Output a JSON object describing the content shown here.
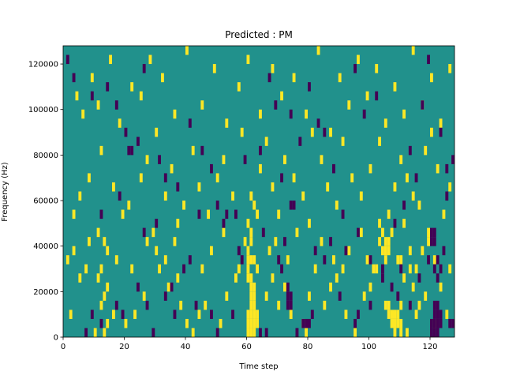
{
  "chart_data": {
    "type": "heatmap",
    "title": "Predicted : PM",
    "xlabel": "Time step",
    "ylabel": "Frequency (Hz)",
    "xlim": [
      0,
      128
    ],
    "ylim": [
      0,
      128000
    ],
    "x_ticks": [
      0,
      20,
      40,
      60,
      80,
      100,
      120
    ],
    "y_ticks": [
      0,
      20000,
      40000,
      60000,
      80000,
      100000,
      120000
    ],
    "x_tick_labels": [
      "0",
      "20",
      "40",
      "60",
      "80",
      "100",
      "120"
    ],
    "y_tick_labels": [
      "0",
      "20000",
      "40000",
      "60000",
      "80000",
      "100000",
      "120000"
    ],
    "grid": false,
    "legend": "none",
    "colors": {
      "background_value": "#21918c",
      "high_value": "#fde725",
      "low_value": "#440154"
    },
    "cell_height_hz": 4000,
    "high_cells": [
      [
        60,
        2000
      ],
      [
        61,
        2000
      ],
      [
        62,
        2000
      ],
      [
        60,
        6000
      ],
      [
        61,
        6000
      ],
      [
        62,
        6000
      ],
      [
        63,
        6000
      ],
      [
        60,
        10000
      ],
      [
        61,
        10000
      ],
      [
        62,
        10000
      ],
      [
        63,
        10000
      ],
      [
        61,
        14000
      ],
      [
        62,
        14000
      ],
      [
        61,
        18000
      ],
      [
        62,
        18000
      ],
      [
        61,
        22000
      ],
      [
        62,
        22000
      ],
      [
        60,
        26000
      ],
      [
        61,
        26000
      ],
      [
        60,
        30000
      ],
      [
        63,
        30000
      ],
      [
        60,
        34000
      ],
      [
        61,
        34000
      ],
      [
        62,
        34000
      ],
      [
        60,
        38000
      ],
      [
        61,
        42000
      ],
      [
        61,
        46000
      ],
      [
        60,
        50000
      ],
      [
        105,
        14000
      ],
      [
        106,
        14000
      ],
      [
        110,
        14000
      ],
      [
        106,
        10000
      ],
      [
        107,
        10000
      ],
      [
        108,
        10000
      ],
      [
        109,
        10000
      ],
      [
        107,
        6000
      ],
      [
        108,
        6000
      ],
      [
        109,
        6000
      ],
      [
        110,
        6000
      ],
      [
        108,
        2000
      ],
      [
        110,
        2000
      ],
      [
        104,
        38000
      ],
      [
        105,
        38000
      ],
      [
        106,
        38000
      ],
      [
        105,
        42000
      ],
      [
        106,
        42000
      ],
      [
        104,
        46000
      ],
      [
        103,
        50000
      ],
      [
        105,
        34000
      ],
      [
        110,
        34000
      ],
      [
        2,
        10000
      ],
      [
        10,
        2000
      ],
      [
        13,
        2000
      ],
      [
        14,
        6000
      ],
      [
        16,
        10000
      ],
      [
        12,
        14000
      ],
      [
        13,
        18000
      ],
      [
        14,
        22000
      ],
      [
        11,
        26000
      ],
      [
        12,
        30000
      ],
      [
        14,
        38000
      ],
      [
        13,
        42000
      ],
      [
        11,
        46000
      ],
      [
        20,
        6000
      ],
      [
        23,
        10000
      ],
      [
        26,
        18000
      ],
      [
        22,
        30000
      ],
      [
        31,
        30000
      ],
      [
        30,
        38000
      ],
      [
        34,
        22000
      ],
      [
        37,
        26000
      ],
      [
        38,
        14000
      ],
      [
        40,
        6000
      ],
      [
        42,
        2000
      ],
      [
        44,
        10000
      ],
      [
        46,
        14000
      ],
      [
        51,
        6000
      ],
      [
        53,
        18000
      ],
      [
        56,
        26000
      ],
      [
        57,
        30000
      ],
      [
        66,
        18000
      ],
      [
        68,
        26000
      ],
      [
        70,
        14000
      ],
      [
        72,
        22000
      ],
      [
        74,
        10000
      ],
      [
        78,
        6000
      ],
      [
        79,
        2000
      ],
      [
        80,
        18000
      ],
      [
        82,
        30000
      ],
      [
        85,
        14000
      ],
      [
        87,
        22000
      ],
      [
        89,
        26000
      ],
      [
        92,
        10000
      ],
      [
        95,
        2000
      ],
      [
        98,
        18000
      ],
      [
        100,
        22000
      ],
      [
        102,
        30000
      ],
      [
        111,
        26000
      ],
      [
        113,
        30000
      ],
      [
        116,
        14000
      ],
      [
        118,
        18000
      ],
      [
        112,
        2000
      ],
      [
        114,
        22000
      ],
      [
        115,
        10000
      ],
      [
        117,
        38000
      ],
      [
        119,
        42000
      ],
      [
        121,
        6000
      ],
      [
        123,
        22000
      ],
      [
        125,
        10000
      ],
      [
        126,
        30000
      ],
      [
        3,
        54000
      ],
      [
        5,
        62000
      ],
      [
        8,
        70000
      ],
      [
        12,
        82000
      ],
      [
        16,
        66000
      ],
      [
        19,
        54000
      ],
      [
        21,
        58000
      ],
      [
        25,
        70000
      ],
      [
        27,
        78000
      ],
      [
        30,
        90000
      ],
      [
        33,
        62000
      ],
      [
        35,
        74000
      ],
      [
        37,
        50000
      ],
      [
        39,
        58000
      ],
      [
        42,
        82000
      ],
      [
        44,
        66000
      ],
      [
        47,
        54000
      ],
      [
        50,
        70000
      ],
      [
        52,
        78000
      ],
      [
        55,
        62000
      ],
      [
        58,
        90000
      ],
      [
        62,
        58000
      ],
      [
        64,
        74000
      ],
      [
        66,
        86000
      ],
      [
        68,
        66000
      ],
      [
        70,
        54000
      ],
      [
        72,
        78000
      ],
      [
        75,
        70000
      ],
      [
        78,
        62000
      ],
      [
        81,
        90000
      ],
      [
        84,
        78000
      ],
      [
        86,
        66000
      ],
      [
        89,
        58000
      ],
      [
        91,
        86000
      ],
      [
        94,
        70000
      ],
      [
        97,
        62000
      ],
      [
        100,
        74000
      ],
      [
        103,
        86000
      ],
      [
        106,
        54000
      ],
      [
        108,
        66000
      ],
      [
        110,
        78000
      ],
      [
        112,
        70000
      ],
      [
        114,
        62000
      ],
      [
        116,
        58000
      ],
      [
        118,
        82000
      ],
      [
        120,
        90000
      ],
      [
        122,
        74000
      ],
      [
        124,
        54000
      ],
      [
        126,
        66000
      ],
      [
        4,
        106000
      ],
      [
        6,
        98000
      ],
      [
        9,
        114000
      ],
      [
        11,
        102000
      ],
      [
        15,
        122000
      ],
      [
        18,
        94000
      ],
      [
        22,
        110000
      ],
      [
        25,
        106000
      ],
      [
        28,
        122000
      ],
      [
        32,
        114000
      ],
      [
        36,
        98000
      ],
      [
        40,
        126000
      ],
      [
        45,
        102000
      ],
      [
        49,
        118000
      ],
      [
        53,
        94000
      ],
      [
        57,
        110000
      ],
      [
        60,
        122000
      ],
      [
        64,
        98000
      ],
      [
        68,
        118000
      ],
      [
        71,
        106000
      ],
      [
        75,
        114000
      ],
      [
        79,
        98000
      ],
      [
        83,
        126000
      ],
      [
        87,
        90000
      ],
      [
        90,
        114000
      ],
      [
        93,
        102000
      ],
      [
        96,
        122000
      ],
      [
        99,
        106000
      ],
      [
        102,
        118000
      ],
      [
        105,
        94000
      ],
      [
        108,
        110000
      ],
      [
        111,
        98000
      ],
      [
        114,
        126000
      ],
      [
        117,
        102000
      ],
      [
        120,
        114000
      ],
      [
        123,
        94000
      ],
      [
        126,
        118000
      ],
      [
        1,
        34000
      ],
      [
        3,
        38000
      ],
      [
        5,
        26000
      ],
      [
        7,
        30000
      ],
      [
        8,
        42000
      ],
      [
        17,
        34000
      ],
      [
        27,
        42000
      ],
      [
        29,
        46000
      ],
      [
        33,
        34000
      ],
      [
        36,
        42000
      ],
      [
        45,
        30000
      ],
      [
        48,
        38000
      ],
      [
        52,
        46000
      ],
      [
        59,
        42000
      ],
      [
        61,
        62000
      ],
      [
        63,
        54000
      ],
      [
        67,
        38000
      ],
      [
        69,
        42000
      ],
      [
        73,
        34000
      ],
      [
        76,
        46000
      ],
      [
        80,
        50000
      ],
      [
        84,
        42000
      ],
      [
        88,
        34000
      ],
      [
        91,
        30000
      ],
      [
        93,
        38000
      ],
      [
        97,
        46000
      ],
      [
        99,
        34000
      ],
      [
        101,
        30000
      ],
      [
        103,
        42000
      ],
      [
        107,
        46000
      ],
      [
        109,
        34000
      ],
      [
        111,
        50000
      ],
      [
        113,
        38000
      ],
      [
        115,
        30000
      ],
      [
        119,
        46000
      ],
      [
        121,
        34000
      ]
    ],
    "low_cells": [
      [
        120,
        2000
      ],
      [
        121,
        2000
      ],
      [
        122,
        2000
      ],
      [
        120,
        6000
      ],
      [
        121,
        6000
      ],
      [
        122,
        6000
      ],
      [
        123,
        6000
      ],
      [
        121,
        10000
      ],
      [
        122,
        10000
      ],
      [
        123,
        10000
      ],
      [
        121,
        14000
      ],
      [
        122,
        14000
      ],
      [
        122,
        26000
      ],
      [
        121,
        30000
      ],
      [
        123,
        30000
      ],
      [
        122,
        34000
      ],
      [
        120,
        42000
      ],
      [
        121,
        42000
      ],
      [
        120,
        46000
      ],
      [
        127,
        6000
      ],
      [
        126,
        6000
      ],
      [
        127,
        78000
      ],
      [
        125,
        74000
      ],
      [
        73,
        14000
      ],
      [
        74,
        14000
      ],
      [
        73,
        18000
      ],
      [
        74,
        18000
      ],
      [
        73,
        22000
      ],
      [
        78,
        6000
      ],
      [
        79,
        6000
      ],
      [
        80,
        6000
      ],
      [
        74,
        58000
      ],
      [
        75,
        58000
      ],
      [
        12,
        6000
      ],
      [
        17,
        14000
      ],
      [
        9,
        10000
      ],
      [
        7,
        2000
      ],
      [
        19,
        10000
      ],
      [
        24,
        22000
      ],
      [
        27,
        14000
      ],
      [
        29,
        2000
      ],
      [
        33,
        18000
      ],
      [
        35,
        22000
      ],
      [
        36,
        10000
      ],
      [
        41,
        34000
      ],
      [
        43,
        14000
      ],
      [
        48,
        10000
      ],
      [
        50,
        2000
      ],
      [
        55,
        10000
      ],
      [
        58,
        34000
      ],
      [
        64,
        2000
      ],
      [
        66,
        2000
      ],
      [
        70,
        34000
      ],
      [
        71,
        30000
      ],
      [
        76,
        2000
      ],
      [
        81,
        10000
      ],
      [
        85,
        34000
      ],
      [
        90,
        18000
      ],
      [
        95,
        6000
      ],
      [
        96,
        10000
      ],
      [
        100,
        14000
      ],
      [
        104,
        26000
      ],
      [
        107,
        22000
      ],
      [
        109,
        18000
      ],
      [
        113,
        14000
      ],
      [
        116,
        26000
      ],
      [
        119,
        34000
      ],
      [
        1,
        122000
      ],
      [
        3,
        114000
      ],
      [
        9,
        106000
      ],
      [
        14,
        110000
      ],
      [
        17,
        102000
      ],
      [
        20,
        90000
      ],
      [
        21,
        82000
      ],
      [
        22,
        82000
      ],
      [
        24,
        86000
      ],
      [
        26,
        118000
      ],
      [
        31,
        78000
      ],
      [
        33,
        70000
      ],
      [
        37,
        66000
      ],
      [
        41,
        94000
      ],
      [
        45,
        82000
      ],
      [
        48,
        74000
      ],
      [
        50,
        58000
      ],
      [
        53,
        54000
      ],
      [
        56,
        54000
      ],
      [
        59,
        78000
      ],
      [
        64,
        82000
      ],
      [
        67,
        114000
      ],
      [
        69,
        102000
      ],
      [
        71,
        70000
      ],
      [
        74,
        98000
      ],
      [
        77,
        86000
      ],
      [
        80,
        110000
      ],
      [
        83,
        94000
      ],
      [
        85,
        90000
      ],
      [
        88,
        74000
      ],
      [
        91,
        54000
      ],
      [
        95,
        118000
      ],
      [
        98,
        98000
      ],
      [
        102,
        106000
      ],
      [
        108,
        50000
      ],
      [
        111,
        58000
      ],
      [
        113,
        82000
      ],
      [
        115,
        70000
      ],
      [
        117,
        102000
      ],
      [
        119,
        122000
      ],
      [
        121,
        46000
      ],
      [
        123,
        90000
      ],
      [
        125,
        62000
      ],
      [
        12,
        54000
      ],
      [
        18,
        62000
      ],
      [
        26,
        46000
      ],
      [
        30,
        50000
      ],
      [
        39,
        30000
      ],
      [
        44,
        54000
      ],
      [
        52,
        50000
      ],
      [
        57,
        38000
      ],
      [
        65,
        46000
      ],
      [
        72,
        42000
      ],
      [
        82,
        38000
      ],
      [
        87,
        42000
      ],
      [
        92,
        38000
      ],
      [
        96,
        46000
      ],
      [
        100,
        34000
      ],
      [
        104,
        30000
      ],
      [
        110,
        30000
      ],
      [
        124,
        38000
      ]
    ]
  }
}
